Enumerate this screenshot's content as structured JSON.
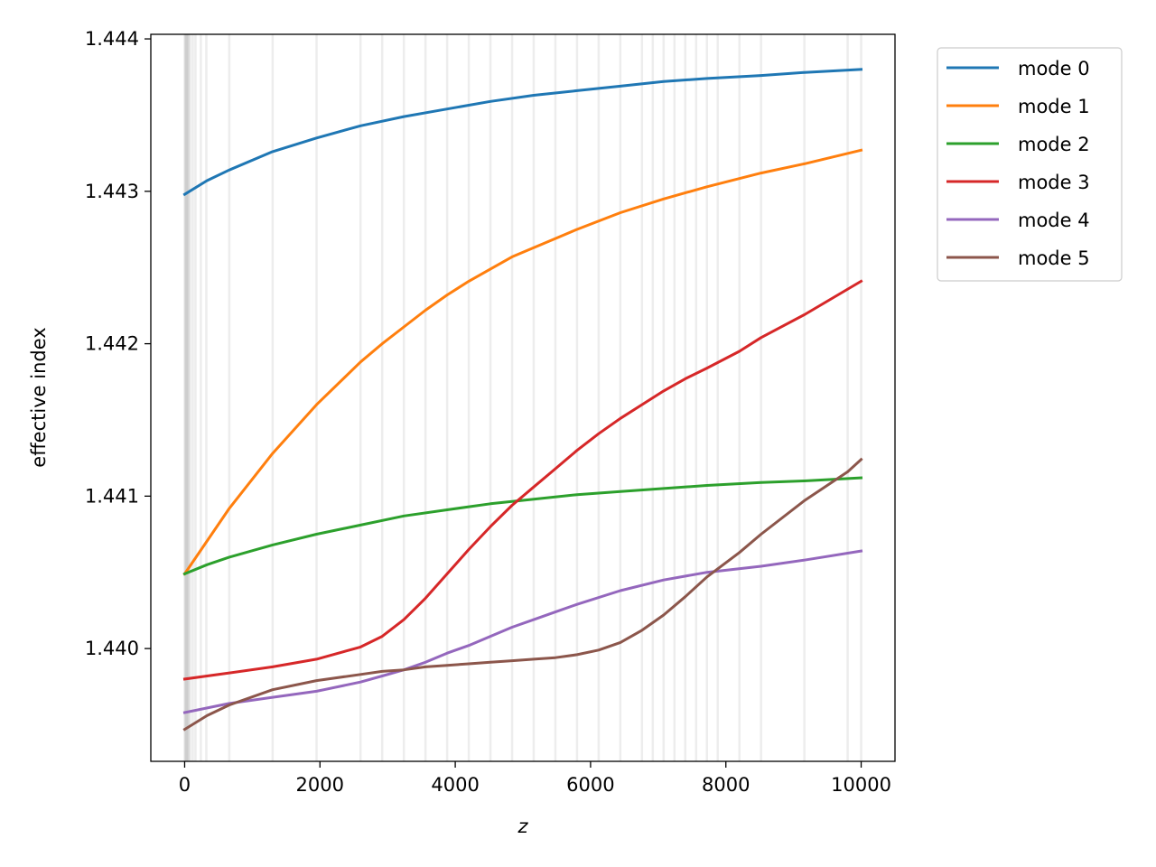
{
  "chart_data": {
    "type": "line",
    "xlabel": "z",
    "ylabel": "effective index",
    "xlim": [
      -500,
      10500
    ],
    "ylim": [
      1.43926,
      1.44403
    ],
    "x_ticks": [
      0,
      2000,
      4000,
      6000,
      8000,
      10000
    ],
    "x_tick_labels": [
      "0",
      "2000",
      "4000",
      "6000",
      "8000",
      "10000"
    ],
    "y_ticks": [
      1.44,
      1.441,
      1.442,
      1.443,
      1.444
    ],
    "y_tick_labels": [
      "1.440",
      "1.441",
      "1.442",
      "1.443",
      "1.444"
    ],
    "grid": false,
    "vertical_lines_x": [
      0,
      10,
      20,
      30,
      40,
      50,
      60,
      80,
      120,
      160,
      240,
      320,
      660,
      1300,
      1950,
      2600,
      2920,
      3240,
      3560,
      3880,
      4200,
      4520,
      4840,
      5160,
      5480,
      5800,
      6120,
      6440,
      6760,
      6920,
      7080,
      7240,
      7400,
      7560,
      7720,
      7880,
      8200,
      8520,
      9160,
      9800,
      10000
    ],
    "legend_position": "outside-upper-right",
    "series": [
      {
        "name": "mode 0",
        "color": "#1f77b4",
        "x": [
          0,
          330,
          660,
          1300,
          1950,
          2600,
          3240,
          3880,
          4520,
          5160,
          5800,
          6440,
          7080,
          7720,
          8520,
          9160,
          10000
        ],
        "y": [
          1.44298,
          1.44307,
          1.44314,
          1.44326,
          1.44335,
          1.44343,
          1.44349,
          1.44354,
          1.44359,
          1.44363,
          1.44366,
          1.44369,
          1.44372,
          1.44374,
          1.44376,
          1.44378,
          1.4438
        ]
      },
      {
        "name": "mode 1",
        "color": "#ff7f0e",
        "x": [
          0,
          660,
          1300,
          1950,
          2600,
          2920,
          3240,
          3560,
          3880,
          4200,
          4520,
          4840,
          5160,
          5480,
          5800,
          6440,
          7080,
          7720,
          8520,
          9160,
          10000
        ],
        "y": [
          1.44049,
          1.44092,
          1.44128,
          1.4416,
          1.44188,
          1.442,
          1.44211,
          1.44222,
          1.44232,
          1.44241,
          1.44249,
          1.44257,
          1.44263,
          1.44269,
          1.44275,
          1.44286,
          1.44295,
          1.44303,
          1.44312,
          1.44318,
          1.44327
        ]
      },
      {
        "name": "mode 2",
        "color": "#2ca02c",
        "x": [
          0,
          330,
          660,
          1300,
          1950,
          2600,
          3240,
          3880,
          4520,
          5160,
          5800,
          6440,
          7080,
          7720,
          8520,
          9160,
          10000
        ],
        "y": [
          1.44049,
          1.44055,
          1.4406,
          1.44068,
          1.44075,
          1.44081,
          1.44087,
          1.44091,
          1.44095,
          1.44098,
          1.44101,
          1.44103,
          1.44105,
          1.44107,
          1.44109,
          1.4411,
          1.44112
        ]
      },
      {
        "name": "mode 3",
        "color": "#d62728",
        "x": [
          0,
          660,
          1300,
          1950,
          2600,
          2920,
          3240,
          3560,
          3880,
          4200,
          4520,
          4840,
          5160,
          5480,
          5800,
          6120,
          6440,
          6760,
          7080,
          7400,
          7720,
          8200,
          8520,
          9160,
          10000
        ],
        "y": [
          1.4398,
          1.43984,
          1.43988,
          1.43993,
          1.44001,
          1.44008,
          1.44019,
          1.44033,
          1.44049,
          1.44065,
          1.4408,
          1.44094,
          1.44106,
          1.44118,
          1.4413,
          1.44141,
          1.44151,
          1.4416,
          1.44169,
          1.44177,
          1.44184,
          1.44195,
          1.44204,
          1.44219,
          1.44241
        ]
      },
      {
        "name": "mode 4",
        "color": "#9467bd",
        "x": [
          0,
          660,
          1300,
          1950,
          2600,
          2920,
          3240,
          3560,
          3880,
          4200,
          4520,
          4840,
          5160,
          5480,
          5800,
          6440,
          7080,
          7720,
          8520,
          9160,
          10000
        ],
        "y": [
          1.43958,
          1.43964,
          1.43968,
          1.43972,
          1.43978,
          1.43982,
          1.43986,
          1.43991,
          1.43997,
          1.44002,
          1.44008,
          1.44014,
          1.44019,
          1.44024,
          1.44029,
          1.44038,
          1.44045,
          1.4405,
          1.44054,
          1.44058,
          1.44064
        ]
      },
      {
        "name": "mode 5",
        "color": "#8c564b",
        "x": [
          0,
          330,
          660,
          1300,
          1950,
          2600,
          2920,
          3240,
          3560,
          3880,
          4200,
          4520,
          4840,
          5160,
          5480,
          5800,
          6120,
          6440,
          6760,
          7080,
          7400,
          7720,
          8200,
          8520,
          9160,
          9800,
          10000
        ],
        "y": [
          1.43947,
          1.43956,
          1.43963,
          1.43973,
          1.43979,
          1.43983,
          1.43985,
          1.43986,
          1.43988,
          1.43989,
          1.4399,
          1.43991,
          1.43992,
          1.43993,
          1.43994,
          1.43996,
          1.43999,
          1.44004,
          1.44012,
          1.44022,
          1.44034,
          1.44047,
          1.44063,
          1.44075,
          1.44097,
          1.44116,
          1.44124
        ]
      }
    ]
  }
}
